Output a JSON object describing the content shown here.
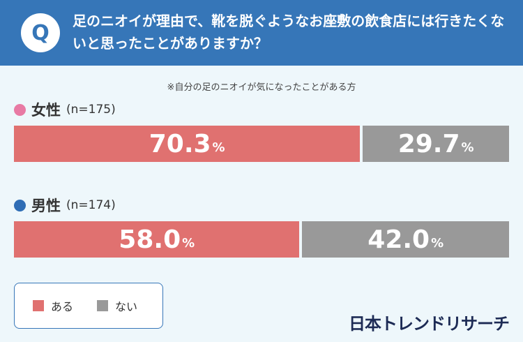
{
  "question": {
    "badge": "Q",
    "text": "足のニオイが理由で、靴を脱ぐようなお座敷の飲食店には行きたくないと思ったことがありますか？"
  },
  "note": "※自分の足のニオイが気になったことがある方",
  "colors": {
    "header": "#3676b8",
    "aru": "#e07170",
    "nai": "#999999",
    "female_dot": "#e87aa4",
    "male_dot": "#2f6db5"
  },
  "brand": "日本トレンドリサーチ",
  "chart_data": {
    "type": "bar",
    "orientation": "horizontal-stacked-100",
    "categories": [
      "女性",
      "男性"
    ],
    "group_n": [
      "(n=175)",
      "(n=174)"
    ],
    "series": [
      {
        "name": "ある",
        "values": [
          70.3,
          58.0
        ]
      },
      {
        "name": "ない",
        "values": [
          29.7,
          42.0
        ]
      }
    ],
    "value_labels": [
      [
        "70.3",
        "29.7"
      ],
      [
        "58.0",
        "42.0"
      ]
    ],
    "unit": "%",
    "legend": [
      "ある",
      "ない"
    ],
    "legend_position": "bottom-left"
  }
}
